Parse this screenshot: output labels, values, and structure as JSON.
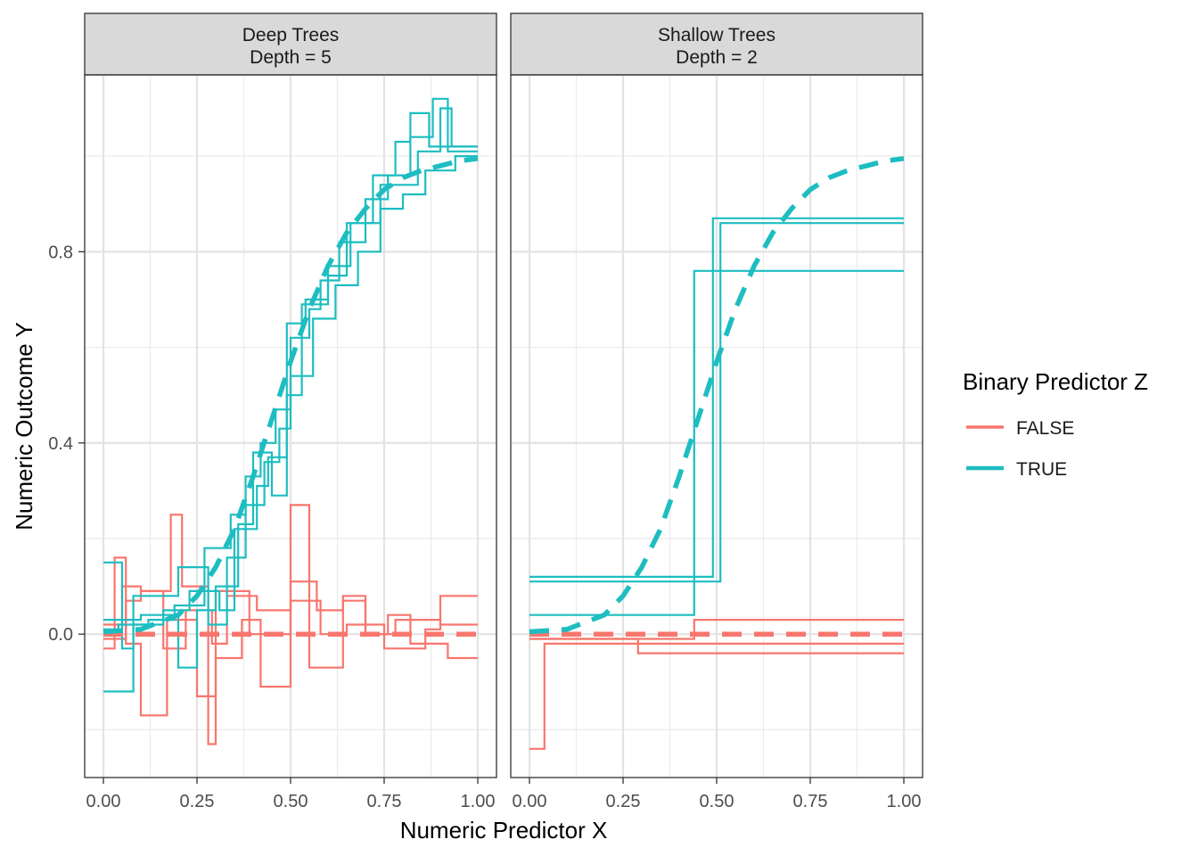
{
  "chart_data": {
    "type": "line",
    "xlabel": "Numeric Predictor X",
    "ylabel": "Numeric Outcome Y",
    "xlim": [
      -0.05,
      1.05
    ],
    "ylim": [
      -0.3,
      1.17
    ],
    "x_ticks": [
      0.0,
      0.25,
      0.5,
      0.75,
      1.0
    ],
    "x_tick_labels": [
      "0.00",
      "0.25",
      "0.50",
      "0.75",
      "1.00"
    ],
    "y_ticks": [
      0.0,
      0.4,
      0.8
    ],
    "y_tick_labels": [
      "0.0",
      "0.4",
      "0.8"
    ],
    "grid": true,
    "legend": {
      "title": "Binary Predictor Z",
      "position": "right",
      "entries": [
        {
          "label": "FALSE",
          "color": "#F8766D"
        },
        {
          "label": "TRUE",
          "color": "#1DBDC1"
        }
      ]
    },
    "colors": {
      "FALSE": "#F8766D",
      "TRUE": "#1DBDC1"
    },
    "panels": [
      {
        "title_line1": "Deep Trees",
        "title_line2": "Depth = 5",
        "true_curve": {
          "x": [
            0.0,
            0.1,
            0.2,
            0.25,
            0.3,
            0.35,
            0.4,
            0.45,
            0.5,
            0.55,
            0.6,
            0.65,
            0.7,
            0.75,
            0.8,
            0.85,
            0.9,
            0.95,
            1.0
          ],
          "TRUE": [
            0.005,
            0.01,
            0.04,
            0.08,
            0.14,
            0.22,
            0.33,
            0.45,
            0.57,
            0.68,
            0.77,
            0.84,
            0.89,
            0.93,
            0.955,
            0.97,
            0.98,
            0.99,
            0.995
          ],
          "FALSE": [
            0.0,
            0.0
          ]
        },
        "fitted_steps": {
          "TRUE": [
            {
              "x": [
                0.0,
                0.05,
                0.05,
                0.08,
                0.08,
                0.2,
                0.2,
                0.28,
                0.28,
                0.33,
                0.33,
                0.38,
                0.38,
                0.43,
                0.43,
                0.47,
                0.47,
                0.5,
                0.5,
                0.55,
                0.55,
                0.58,
                0.58,
                0.63,
                0.63,
                0.7,
                0.7,
                0.76,
                0.76,
                0.82,
                0.82,
                0.88,
                0.88,
                0.92,
                0.92,
                1.0
              ],
              "y": [
                0.15,
                0.15,
                -0.03,
                -0.03,
                0.08,
                0.08,
                0.14,
                0.14,
                0.02,
                0.02,
                0.16,
                0.16,
                0.27,
                0.27,
                0.36,
                0.36,
                0.43,
                0.43,
                0.62,
                0.62,
                0.68,
                0.68,
                0.74,
                0.74,
                0.82,
                0.82,
                0.91,
                0.91,
                0.96,
                0.96,
                1.04,
                1.04,
                1.12,
                1.12,
                1.01,
                1.01
              ]
            },
            {
              "x": [
                0.0,
                0.1,
                0.1,
                0.2,
                0.2,
                0.25,
                0.25,
                0.3,
                0.3,
                0.36,
                0.36,
                0.4,
                0.4,
                0.45,
                0.45,
                0.49,
                0.49,
                0.53,
                0.53,
                0.6,
                0.6,
                0.65,
                0.65,
                0.72,
                0.72,
                0.78,
                0.78,
                0.82,
                0.82,
                0.87,
                0.87,
                1.0
              ],
              "y": [
                0.03,
                0.03,
                0.04,
                0.04,
                -0.07,
                -0.07,
                0.05,
                0.05,
                0.1,
                0.1,
                0.23,
                0.23,
                0.38,
                0.38,
                0.29,
                0.29,
                0.5,
                0.5,
                0.69,
                0.69,
                0.75,
                0.75,
                0.86,
                0.86,
                0.96,
                0.96,
                1.03,
                1.03,
                1.09,
                1.09,
                1.02,
                1.02
              ]
            },
            {
              "x": [
                0.0,
                0.08,
                0.08,
                0.16,
                0.16,
                0.23,
                0.23,
                0.31,
                0.31,
                0.35,
                0.35,
                0.41,
                0.41,
                0.44,
                0.44,
                0.49,
                0.49,
                0.54,
                0.54,
                0.6,
                0.6,
                0.66,
                0.66,
                0.74,
                0.74,
                0.84,
                0.84,
                0.9,
                0.9,
                0.93,
                0.93,
                1.0
              ],
              "y": [
                -0.12,
                -0.12,
                0.02,
                0.02,
                0.05,
                0.05,
                0.09,
                0.09,
                0.05,
                0.05,
                0.22,
                0.22,
                0.31,
                0.31,
                0.37,
                0.37,
                0.65,
                0.65,
                0.7,
                0.7,
                0.77,
                0.77,
                0.86,
                0.86,
                0.94,
                0.94,
                1.01,
                1.01,
                1.1,
                1.1,
                1.02,
                1.02
              ]
            },
            {
              "x": [
                0.0,
                0.04,
                0.04,
                0.12,
                0.12,
                0.19,
                0.19,
                0.27,
                0.27,
                0.34,
                0.34,
                0.38,
                0.38,
                0.42,
                0.42,
                0.46,
                0.46,
                0.5,
                0.5,
                0.56,
                0.56,
                0.62,
                0.62,
                0.68,
                0.68,
                0.74,
                0.74,
                0.8,
                0.8,
                0.86,
                0.86,
                0.94,
                0.94,
                1.0
              ],
              "y": [
                0.01,
                0.01,
                0.02,
                0.02,
                0.03,
                0.03,
                0.06,
                0.06,
                0.18,
                0.18,
                0.25,
                0.25,
                0.33,
                0.33,
                0.4,
                0.4,
                0.47,
                0.47,
                0.54,
                0.54,
                0.66,
                0.66,
                0.73,
                0.73,
                0.8,
                0.8,
                0.89,
                0.89,
                0.92,
                0.92,
                0.97,
                0.97,
                1.0,
                1.0
              ]
            }
          ],
          "FALSE": [
            {
              "x": [
                0.0,
                0.03,
                0.03,
                0.06,
                0.06,
                0.1,
                0.1,
                0.17,
                0.17,
                0.25,
                0.25,
                0.3,
                0.3,
                0.37,
                0.37,
                0.42,
                0.42,
                0.5,
                0.5,
                0.55,
                0.55,
                0.64,
                0.64,
                0.7,
                0.7,
                0.76,
                0.76,
                0.82,
                0.82,
                0.92,
                0.92,
                1.0
              ],
              "y": [
                -0.03,
                -0.03,
                0.16,
                0.16,
                -0.02,
                -0.02,
                -0.17,
                -0.17,
                0.03,
                0.03,
                -0.13,
                -0.13,
                -0.05,
                -0.05,
                0.03,
                0.03,
                -0.11,
                -0.11,
                0.27,
                0.27,
                -0.07,
                -0.07,
                0.08,
                0.08,
                0.0,
                0.0,
                0.04,
                0.04,
                -0.02,
                -0.02,
                -0.05,
                -0.05
              ]
            },
            {
              "x": [
                0.0,
                0.05,
                0.05,
                0.1,
                0.1,
                0.18,
                0.18,
                0.21,
                0.21,
                0.28,
                0.28,
                0.3,
                0.3,
                0.39,
                0.39,
                0.5,
                0.5,
                0.58,
                0.58,
                0.65,
                0.65,
                0.75,
                0.75,
                0.86,
                0.86,
                0.9,
                0.9,
                1.0
              ],
              "y": [
                0.02,
                0.02,
                0.1,
                0.1,
                0.09,
                0.09,
                0.25,
                0.25,
                0.1,
                0.1,
                -0.23,
                -0.23,
                0.09,
                0.09,
                0.0,
                0.0,
                0.07,
                0.07,
                0.0,
                0.0,
                0.02,
                0.02,
                -0.03,
                -0.03,
                0.01,
                0.01,
                0.08,
                0.08
              ]
            },
            {
              "x": [
                0.0,
                0.06,
                0.06,
                0.1,
                0.1,
                0.16,
                0.16,
                0.22,
                0.22,
                0.29,
                0.29,
                0.33,
                0.33,
                0.41,
                0.41,
                0.5,
                0.5,
                0.57,
                0.57,
                0.64,
                0.64,
                0.7,
                0.7,
                0.78,
                0.78,
                0.9,
                0.9,
                0.94,
                0.94,
                1.0
              ],
              "y": [
                -0.01,
                -0.01,
                0.07,
                0.07,
                0.09,
                0.09,
                -0.03,
                -0.03,
                0.05,
                0.05,
                -0.02,
                -0.02,
                0.08,
                0.08,
                0.05,
                0.05,
                0.11,
                0.11,
                0.05,
                0.05,
                0.07,
                0.07,
                0.0,
                0.0,
                0.03,
                0.03,
                0.02,
                0.02,
                0.02,
                0.02
              ]
            }
          ]
        }
      },
      {
        "title_line1": "Shallow Trees",
        "title_line2": "Depth = 2",
        "true_curve": {
          "x": [
            0.0,
            0.1,
            0.2,
            0.25,
            0.3,
            0.35,
            0.4,
            0.45,
            0.5,
            0.55,
            0.6,
            0.65,
            0.7,
            0.75,
            0.8,
            0.85,
            0.9,
            0.95,
            1.0
          ],
          "TRUE": [
            0.005,
            0.01,
            0.04,
            0.08,
            0.14,
            0.22,
            0.33,
            0.45,
            0.57,
            0.68,
            0.77,
            0.84,
            0.89,
            0.93,
            0.955,
            0.97,
            0.98,
            0.99,
            0.995
          ],
          "FALSE": [
            0.0,
            0.0
          ]
        },
        "fitted_steps": {
          "TRUE": [
            {
              "x": [
                0.0,
                0.49,
                0.49,
                1.0
              ],
              "y": [
                0.12,
                0.12,
                0.87,
                0.87
              ]
            },
            {
              "x": [
                0.0,
                0.51,
                0.51,
                1.0
              ],
              "y": [
                0.11,
                0.11,
                0.86,
                0.86
              ]
            },
            {
              "x": [
                0.0,
                0.44,
                0.44,
                1.0
              ],
              "y": [
                0.04,
                0.04,
                0.76,
                0.76
              ]
            }
          ],
          "FALSE": [
            {
              "x": [
                0.0,
                0.04,
                0.04,
                1.0
              ],
              "y": [
                -0.24,
                -0.24,
                -0.02,
                -0.02
              ]
            },
            {
              "x": [
                0.0,
                0.29,
                0.29,
                1.0
              ],
              "y": [
                -0.01,
                -0.01,
                -0.04,
                -0.04
              ]
            },
            {
              "x": [
                0.0,
                0.44,
                0.44,
                1.0
              ],
              "y": [
                -0.01,
                -0.01,
                0.03,
                0.03
              ]
            }
          ]
        }
      }
    ]
  }
}
